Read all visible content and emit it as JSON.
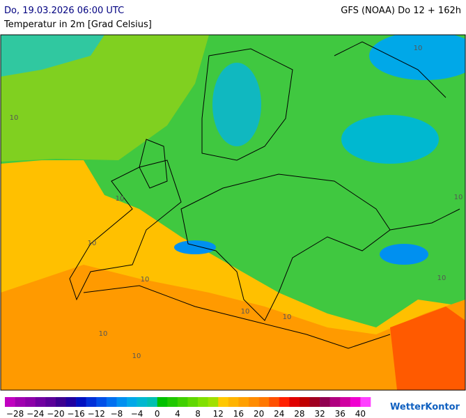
{
  "header": {
    "date": "Do, 19.03.2026 06:00 UTC",
    "model": "GFS (NOAA) Do 12 + 162h",
    "subtitle": "Temperatur in 2m [Grad Celsius]"
  },
  "map": {
    "contour_labels": [
      "10",
      "10",
      "10",
      "10",
      "10",
      "10",
      "10",
      "10",
      "10",
      "10",
      "10"
    ]
  },
  "legend": {
    "labels": [
      "−28",
      "−24",
      "−20",
      "−16",
      "−12",
      "−8",
      "−4",
      "0",
      "4",
      "8",
      "12",
      "16",
      "20",
      "24",
      "28",
      "32",
      "36",
      "40"
    ],
    "colors": [
      "#c000c0",
      "#a000b0",
      "#8c00a8",
      "#7000a0",
      "#5a0098",
      "#3c0090",
      "#2000a0",
      "#0010c0",
      "#0030d8",
      "#0050e8",
      "#0070f0",
      "#0090f0",
      "#00a8e8",
      "#00b8d0",
      "#00c0b0",
      "#00c000",
      "#20c800",
      "#40d000",
      "#60d800",
      "#80e000",
      "#a0e000",
      "#ffc800",
      "#ffb400",
      "#ffa000",
      "#ff8c00",
      "#ff7800",
      "#ff5000",
      "#ff2000",
      "#e00000",
      "#c00000",
      "#a00020",
      "#900050",
      "#b00080",
      "#d000a0",
      "#f000d0",
      "#ff40ff"
    ]
  },
  "brand": "WetterKontor"
}
